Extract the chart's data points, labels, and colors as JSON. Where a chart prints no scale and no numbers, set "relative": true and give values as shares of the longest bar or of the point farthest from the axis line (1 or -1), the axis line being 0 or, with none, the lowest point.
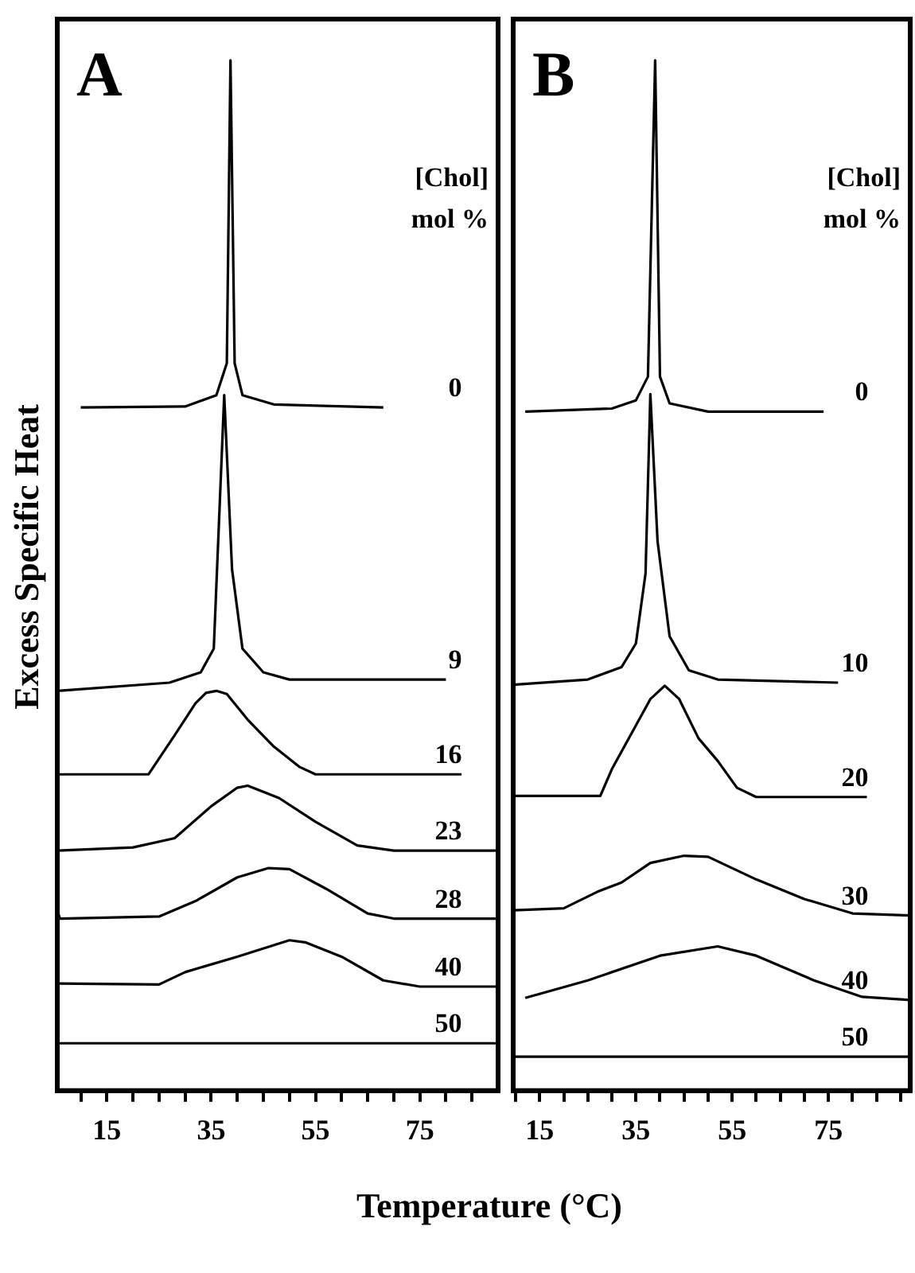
{
  "chart_data": [
    {
      "type": "line",
      "title": "A",
      "ylabel": "Excess Specific Heat",
      "xlabel": "Temperature (°C)",
      "legend_title": "[Chol]\nmol %",
      "relative": true,
      "marker": "none",
      "line_style": "solid",
      "grid": false,
      "legend": false,
      "xlim": [
        5.5,
        90
      ],
      "xticks": [
        {
          "value": 10,
          "label": null
        },
        15,
        {
          "value": 20,
          "label": null
        },
        {
          "value": 25,
          "label": null
        },
        {
          "value": 30,
          "label": null
        },
        35,
        {
          "value": 40,
          "label": null
        },
        {
          "value": 45,
          "label": null
        },
        {
          "value": 50,
          "label": null
        },
        55,
        {
          "value": 60,
          "label": null
        },
        {
          "value": 65,
          "label": null
        },
        {
          "value": 70,
          "label": null
        },
        75,
        {
          "value": 80,
          "label": null
        },
        {
          "value": 85,
          "label": null
        }
      ],
      "series": [
        {
          "name": "0",
          "color": "#000000",
          "x": [
            10,
            30,
            36,
            38,
            38.7,
            39.5,
            41,
            47,
            68
          ],
          "values": [
            0.663,
            0.664,
            0.675,
            0.706,
            1,
            0.706,
            0.675,
            0.666,
            0.663
          ]
        },
        {
          "name": "9",
          "color": "#000000",
          "x": [
            5.5,
            27,
            33,
            35.5,
            37.5,
            39,
            41,
            45,
            50,
            80
          ],
          "values": [
            0.388,
            0.396,
            0.406,
            0.429,
            0.675,
            0.506,
            0.429,
            0.406,
            0.399,
            0.399
          ]
        },
        {
          "name": "16",
          "color": "#000000",
          "x": [
            5.5,
            23,
            28,
            32,
            34,
            36,
            38,
            42,
            47,
            52,
            55,
            83
          ],
          "values": [
            0.307,
            0.307,
            0.345,
            0.376,
            0.386,
            0.388,
            0.385,
            0.36,
            0.334,
            0.314,
            0.307,
            0.307
          ]
        },
        {
          "name": "23",
          "color": "#000000",
          "x": [
            5.5,
            20,
            28,
            35,
            40,
            42,
            48,
            55,
            63,
            70,
            90
          ],
          "values": [
            0.233,
            0.236,
            0.245,
            0.276,
            0.294,
            0.296,
            0.284,
            0.261,
            0.238,
            0.233,
            0.233
          ]
        },
        {
          "name": "28",
          "color": "#000000",
          "x": [
            5.5,
            6,
            25,
            32,
            40,
            46,
            50,
            57,
            65,
            70,
            90
          ],
          "values": [
            0.175,
            0.167,
            0.169,
            0.184,
            0.207,
            0.216,
            0.215,
            0.196,
            0.172,
            0.167,
            0.167
          ]
        },
        {
          "name": "40",
          "color": "#000000",
          "x": [
            5.5,
            25,
            30,
            40,
            50,
            53,
            60,
            68,
            75,
            90
          ],
          "values": [
            0.104,
            0.103,
            0.115,
            0.13,
            0.146,
            0.144,
            0.13,
            0.107,
            0.101,
            0.101
          ]
        },
        {
          "name": "50",
          "color": "#000000",
          "x": [
            5.5,
            90
          ],
          "values": [
            0.046,
            0.046
          ]
        }
      ]
    },
    {
      "type": "line",
      "title": "B",
      "legend_title": "[Chol]\nmol %",
      "relative": true,
      "marker": "none",
      "line_style": "solid",
      "grid": false,
      "legend": false,
      "xlim": [
        9.5,
        92
      ],
      "xticks": [
        {
          "value": 10,
          "label": null
        },
        15,
        {
          "value": 20,
          "label": null
        },
        {
          "value": 25,
          "label": null
        },
        {
          "value": 30,
          "label": null
        },
        35,
        {
          "value": 40,
          "label": null
        },
        {
          "value": 45,
          "label": null
        },
        {
          "value": 50,
          "label": null
        },
        55,
        {
          "value": 60,
          "label": null
        },
        {
          "value": 65,
          "label": null
        },
        {
          "value": 70,
          "label": null
        },
        75,
        {
          "value": 80,
          "label": null
        },
        {
          "value": 85,
          "label": null
        },
        {
          "value": 90,
          "label": null
        }
      ],
      "series": [
        {
          "name": "0",
          "color": "#000000",
          "x": [
            12,
            30,
            35,
            37.5,
            39,
            40,
            42,
            50,
            74
          ],
          "values": [
            0.659,
            0.662,
            0.67,
            0.693,
            1,
            0.693,
            0.667,
            0.659,
            0.659
          ]
        },
        {
          "name": "10",
          "color": "#000000",
          "x": [
            9.5,
            25,
            32,
            35,
            37,
            38,
            39.5,
            42,
            46,
            52,
            77
          ],
          "values": [
            0.394,
            0.399,
            0.411,
            0.434,
            0.502,
            0.676,
            0.533,
            0.441,
            0.408,
            0.399,
            0.396
          ]
        },
        {
          "name": "20",
          "color": "#000000",
          "x": [
            9.5,
            27.6,
            30,
            34,
            38,
            41,
            44,
            48,
            52,
            56,
            60,
            83
          ],
          "values": [
            0.286,
            0.286,
            0.312,
            0.346,
            0.38,
            0.393,
            0.38,
            0.342,
            0.32,
            0.294,
            0.285,
            0.285
          ]
        },
        {
          "name": "30",
          "color": "#000000",
          "x": [
            9.5,
            20,
            27,
            32,
            38,
            45,
            50,
            60,
            70,
            80,
            92
          ],
          "values": [
            0.175,
            0.177,
            0.193,
            0.202,
            0.221,
            0.228,
            0.227,
            0.205,
            0.186,
            0.172,
            0.17
          ]
        },
        {
          "name": "40",
          "color": "#000000",
          "x": [
            12,
            25,
            40,
            52,
            60,
            72,
            82,
            92
          ],
          "values": [
            0.09,
            0.107,
            0.131,
            0.14,
            0.131,
            0.107,
            0.091,
            0.088
          ]
        },
        {
          "name": "50",
          "color": "#000000",
          "x": [
            9.5,
            92
          ],
          "values": [
            0.033,
            0.033
          ]
        }
      ]
    }
  ]
}
